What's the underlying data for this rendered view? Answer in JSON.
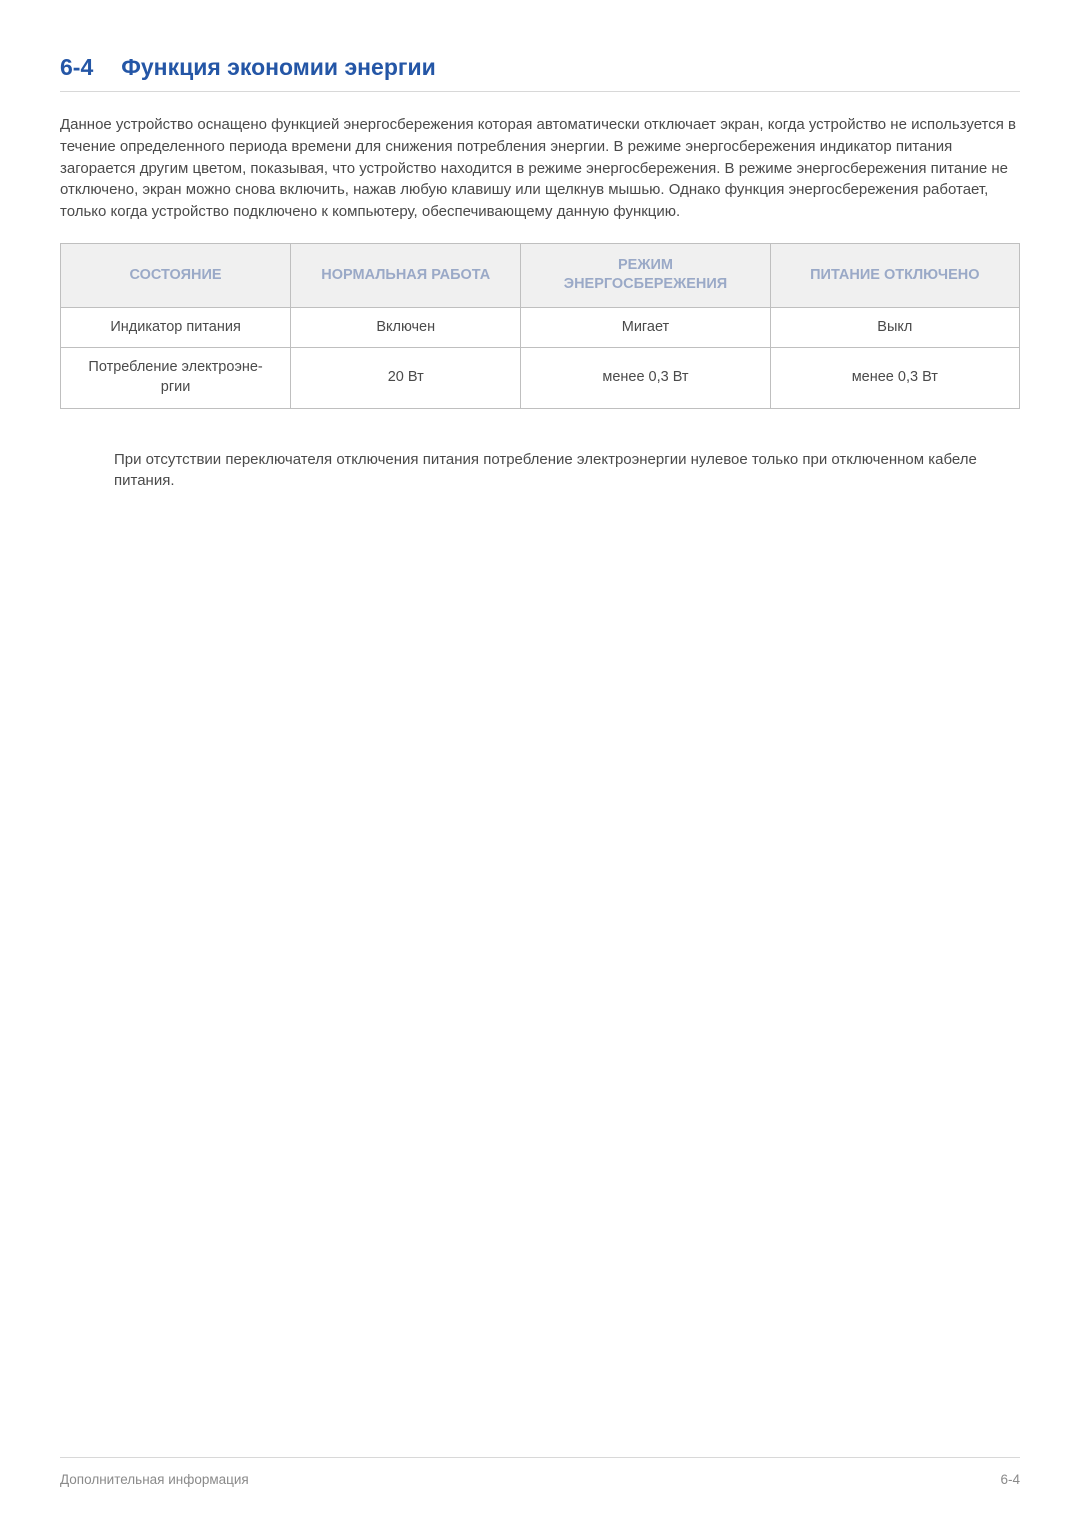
{
  "heading": {
    "number": "6-4",
    "title": "Функция экономии энергии"
  },
  "paragraph": "Данное устройство оснащено функцией энергосбережения которая автоматически отключает экран, когда устройство не используется в течение определенного периода времени для снижения потребления энергии. В режиме энергосбережения индикатор питания загорается другим цветом, показывая, что устройство находится в режиме энергосбережения. В режиме энергосбережения питание не отключено, экран можно снова включить, нажав любую клавишу или щелкнув мышью. Однако функция энергосбережения работает, только когда устройство подключено к компьютеру, обеспечивающему данную функцию.",
  "table": {
    "headers": {
      "col1": "СОСТОЯНИЕ",
      "col2": "НОРМАЛЬНАЯ РАБОТА",
      "col3_line1": "РЕЖИМ",
      "col3_line2": "ЭНЕРГОСБЕРЕЖЕНИЯ",
      "col4": "ПИТАНИЕ ОТКЛЮЧЕНО"
    },
    "rows": [
      {
        "c1": "Индикатор питания",
        "c2": "Включен",
        "c3": "Мигает",
        "c4": "Выкл"
      },
      {
        "c1_line1": "Потребление электроэне-",
        "c1_line2": "ргии",
        "c2": "20 Вт",
        "c3": "менее 0,3 Вт",
        "c4": "менее 0,3 Вт"
      }
    ],
    "col_widths": [
      "24%",
      "24%",
      "26%",
      "26%"
    ],
    "header_bg": "#f0f0f0",
    "header_color": "#9aa9c7",
    "border_color": "#bfbfbf",
    "cell_color": "#4a4a4a"
  },
  "note": "При отсутствии переключателя отключения питания потребление электроэнергии нулевое только при отключенном кабеле питания.",
  "footer": {
    "left": "Дополнительная информация",
    "right": "6-4"
  },
  "colors": {
    "accent": "#2456a6",
    "text": "#4a4a4a",
    "muted": "#8a8a8a",
    "rule": "#d8d8d8",
    "background": "#ffffff"
  }
}
